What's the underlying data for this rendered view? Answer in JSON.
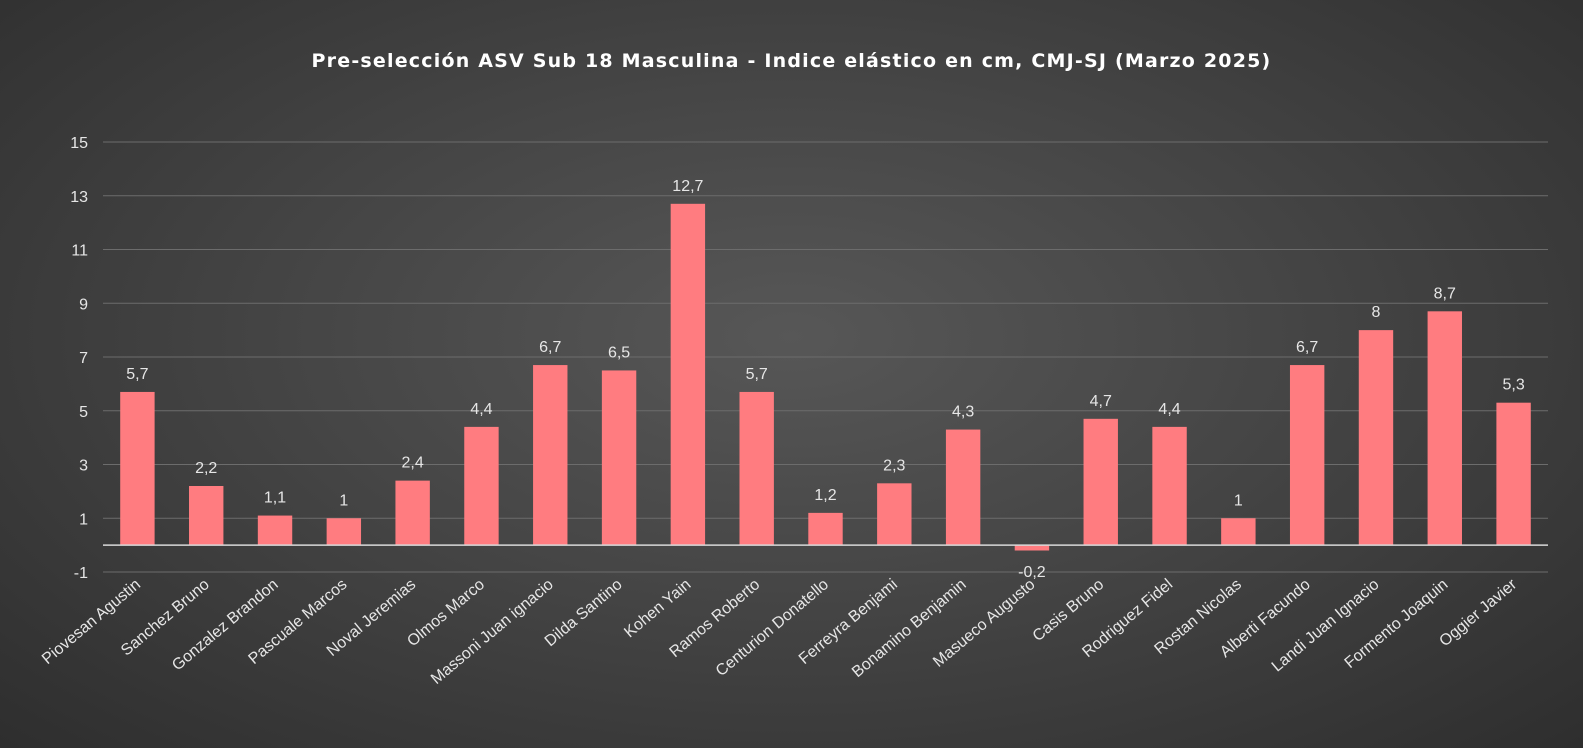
{
  "chart_data": {
    "type": "bar",
    "title": "Pre-selección ASV Sub 18 Masculina - Indice elástico en cm, CMJ-SJ (Marzo 2025)",
    "xlabel": "",
    "ylabel": "",
    "ylim": [
      -1,
      15
    ],
    "yticks": [
      -1,
      1,
      3,
      5,
      7,
      9,
      11,
      13,
      15
    ],
    "grid": true,
    "legend": "none",
    "bar_color": "#ff7c80",
    "categories": [
      "Piovesan Agustin",
      "Sanchez Bruno",
      "Gonzalez Brandon",
      "Pascuale Marcos",
      "Noval Jeremias",
      "Olmos Marco",
      "Massoni Juan ignacio",
      "Dilda Santino",
      "Kohen Yain",
      "Ramos Roberto",
      "Centurion Donatello",
      "Ferreyra Benjami",
      "Bonamino Benjamin",
      "Masueco Augusto",
      "Casis Bruno",
      "Rodriguez Fidel",
      "Rostan Nicolas",
      "Alberti Facundo",
      "Landi Juan Ignacio",
      "Formento Joaquin",
      "Oggier Javier"
    ],
    "values": [
      5.7,
      2.2,
      1.1,
      1,
      2.4,
      4.4,
      6.7,
      6.5,
      12.7,
      5.7,
      1.2,
      2.3,
      4.3,
      -0.2,
      4.7,
      4.4,
      1,
      6.7,
      8,
      8.7,
      5.3
    ],
    "data_labels": [
      "5,7",
      "2,2",
      "1,1",
      "1",
      "2,4",
      "4,4",
      "6,7",
      "6,5",
      "12,7",
      "5,7",
      "1,2",
      "2,3",
      "4,3",
      "-0,2",
      "4,7",
      "4,4",
      "1",
      "6,7",
      "8",
      "8,7",
      "5,3"
    ]
  }
}
